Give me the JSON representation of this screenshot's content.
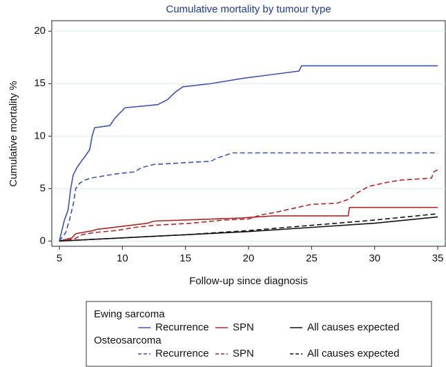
{
  "chart_data": {
    "type": "line",
    "title": "Cumulative mortality by tumour type",
    "x_label": "Follow-up since diagnosis",
    "y_label": "Cumulative mortality %",
    "xlim": [
      4.4,
      35.6
    ],
    "ylim": [
      -0.5,
      21
    ],
    "xticks": [
      5,
      10,
      15,
      20,
      25,
      30,
      35
    ],
    "yticks": [
      0,
      5,
      10,
      15,
      20
    ],
    "grid": true,
    "series": [
      {
        "name": "Recurrence",
        "group": "Ewing sarcoma",
        "color": "#3a52b0",
        "dashed": false,
        "x": [
          5,
          5.2,
          5.4,
          5.7,
          5.9,
          6.1,
          6.4,
          6.8,
          7,
          7.4,
          7.6,
          7.8,
          9,
          9.4,
          9.8,
          10.2,
          12.8,
          13.6,
          14.2,
          14.8,
          17,
          19.5,
          24,
          24.2,
          35
        ],
        "values": [
          0,
          1,
          2,
          3,
          5,
          6.3,
          7,
          7.7,
          8,
          8.7,
          10,
          10.8,
          11,
          11.7,
          12.2,
          12.7,
          13,
          13.5,
          14.2,
          14.7,
          15,
          15.5,
          16.2,
          16.7,
          16.7
        ]
      },
      {
        "name": "SPN",
        "group": "Ewing sarcoma",
        "color": "#b02424",
        "dashed": false,
        "x": [
          5,
          6,
          6.3,
          7.7,
          7.9,
          10,
          12,
          12.5,
          19.5,
          22,
          27.9,
          28,
          35
        ],
        "values": [
          0,
          0.3,
          0.7,
          1,
          1.1,
          1.4,
          1.7,
          1.9,
          2.2,
          2.4,
          2.4,
          3.2,
          3.2
        ]
      },
      {
        "name": "All causes expected",
        "group": "Ewing sarcoma",
        "color": "#111111",
        "dashed": false,
        "x": [
          5,
          10,
          15,
          20,
          25,
          30,
          35
        ],
        "values": [
          0,
          0.3,
          0.6,
          0.9,
          1.3,
          1.7,
          2.3
        ]
      },
      {
        "name": "Recurrence",
        "group": "Osteosarcoma",
        "color": "#3a52b0",
        "dashed": true,
        "x": [
          5,
          5.5,
          5.8,
          6.1,
          6.3,
          6.6,
          7,
          7.5,
          8.5,
          9.5,
          11,
          11.5,
          12.5,
          14,
          17,
          17.5,
          18,
          18.7,
          35
        ],
        "values": [
          0,
          0.8,
          2,
          3.5,
          5,
          5.5,
          5.8,
          6,
          6.2,
          6.4,
          6.6,
          7,
          7.3,
          7.4,
          7.6,
          7.9,
          8.1,
          8.4,
          8.4
        ]
      },
      {
        "name": "SPN",
        "group": "Osteosarcoma",
        "color": "#b02424",
        "dashed": true,
        "x": [
          5,
          6.2,
          6.8,
          7.7,
          9.5,
          11,
          12.5,
          15.5,
          18,
          20,
          21,
          22,
          25,
          27,
          28,
          28.5,
          29.5,
          31,
          32,
          34.5,
          34.7,
          35
        ],
        "values": [
          0,
          0.2,
          0.6,
          0.8,
          1,
          1.3,
          1.5,
          1.7,
          2,
          2.1,
          2.5,
          2.7,
          3.5,
          3.6,
          4,
          4.5,
          5.2,
          5.6,
          5.8,
          6,
          6.6,
          6.8
        ]
      },
      {
        "name": "All causes expected",
        "group": "Osteosarcoma",
        "color": "#111111",
        "dashed": true,
        "x": [
          5,
          10,
          15,
          20,
          25,
          30,
          35
        ],
        "values": [
          0,
          0.3,
          0.6,
          1,
          1.5,
          2,
          2.6
        ]
      }
    ]
  }
}
